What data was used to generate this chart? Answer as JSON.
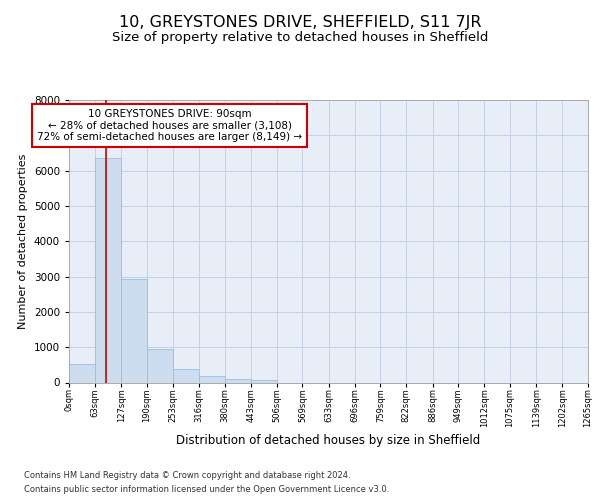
{
  "title": "10, GREYSTONES DRIVE, SHEFFIELD, S11 7JR",
  "subtitle": "Size of property relative to detached houses in Sheffield",
  "xlabel": "Distribution of detached houses by size in Sheffield",
  "ylabel": "Number of detached properties",
  "footer_line1": "Contains HM Land Registry data © Crown copyright and database right 2024.",
  "footer_line2": "Contains public sector information licensed under the Open Government Licence v3.0.",
  "bar_edges": [
    0,
    63,
    127,
    190,
    253,
    316,
    380,
    443,
    506,
    569,
    633,
    696,
    759,
    822,
    886,
    949,
    1012,
    1075,
    1139,
    1202,
    1265
  ],
  "bar_heights": [
    520,
    6350,
    2920,
    960,
    370,
    170,
    100,
    60,
    0,
    0,
    0,
    0,
    0,
    0,
    0,
    0,
    0,
    0,
    0,
    0
  ],
  "tick_labels": [
    "0sqm",
    "63sqm",
    "127sqm",
    "190sqm",
    "253sqm",
    "316sqm",
    "380sqm",
    "443sqm",
    "506sqm",
    "569sqm",
    "633sqm",
    "696sqm",
    "759sqm",
    "822sqm",
    "886sqm",
    "949sqm",
    "1012sqm",
    "1075sqm",
    "1139sqm",
    "1202sqm",
    "1265sqm"
  ],
  "ylim": [
    0,
    8000
  ],
  "yticks": [
    0,
    1000,
    2000,
    3000,
    4000,
    5000,
    6000,
    7000,
    8000
  ],
  "bar_color": "#cdddf0",
  "bar_edge_color": "#9bbde0",
  "grid_color": "#c8d0e8",
  "background_color": "#e8eef8",
  "annotation_box_text": "10 GREYSTONES DRIVE: 90sqm\n← 28% of detached houses are smaller (3,108)\n72% of semi-detached houses are larger (8,149) →",
  "annotation_box_color": "#cc0000",
  "red_line_x": 90,
  "title_fontsize": 11.5,
  "subtitle_fontsize": 9.5,
  "xlabel_fontsize": 8.5,
  "ylabel_fontsize": 8,
  "footer_fontsize": 6,
  "annot_fontsize": 7.5
}
